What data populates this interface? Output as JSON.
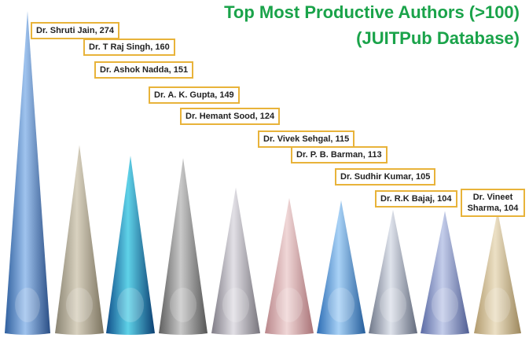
{
  "title": {
    "line1": "Top Most Productive Authors (>100)",
    "line2": "(JUITPub Database)"
  },
  "colors": {
    "title": "#1aa34a",
    "label_border": "#e8b33a"
  },
  "chart_data": {
    "type": "bar",
    "title": "Top Most Productive Authors (>100) (JUITPub Database)",
    "categories": [
      "Dr. Shruti Jain",
      "Dr. T Raj Singh",
      "Dr. Ashok Nadda",
      "Dr. A. K. Gupta",
      "Dr. Hemant Sood",
      "Dr. Vivek Sehgal",
      "Dr. P. B. Barman",
      "Dr. Sudhir Kumar",
      "Dr. R.K Bajaj",
      "Dr. Vineet Sharma"
    ],
    "values": [
      274,
      160,
      151,
      149,
      124,
      115,
      113,
      105,
      104,
      104
    ],
    "labels": [
      "Dr. Shruti Jain, 274",
      "Dr. T Raj Singh, 160",
      "Dr. Ashok Nadda, 151",
      "Dr. A. K. Gupta, 149",
      "Dr. Hemant Sood, 124",
      "Dr. Vivek Sehgal, 115",
      "Dr. P. B. Barman, 113",
      "Dr. Sudhir Kumar, 105",
      "Dr. R.K Bajaj,  104",
      "Dr. Vineet Sharma, 104"
    ],
    "bar_shape": "cone",
    "legend": "none",
    "grid": false,
    "fills": [
      [
        "#2f5f9e",
        "#9fc3ee",
        "#2a4e85"
      ],
      [
        "#8a8472",
        "#d8d1bf",
        "#7b735f"
      ],
      [
        "#0f4e8a",
        "#5fd2e8",
        "#0b3f72"
      ],
      [
        "#5e5e5e",
        "#c9c9c9",
        "#555555"
      ],
      [
        "#7f7c86",
        "#e2e0e6",
        "#77747c"
      ],
      [
        "#b9868a",
        "#f0d7d7",
        "#a87276"
      ],
      [
        "#2b6cb4",
        "#a9d2f6",
        "#245d9b"
      ],
      [
        "#6e7688",
        "#dfe3ec",
        "#626a7c"
      ],
      [
        "#5a6aa4",
        "#c4cdea",
        "#505e93"
      ],
      [
        "#b19a6d",
        "#ece0c5",
        "#9c875c"
      ]
    ]
  }
}
